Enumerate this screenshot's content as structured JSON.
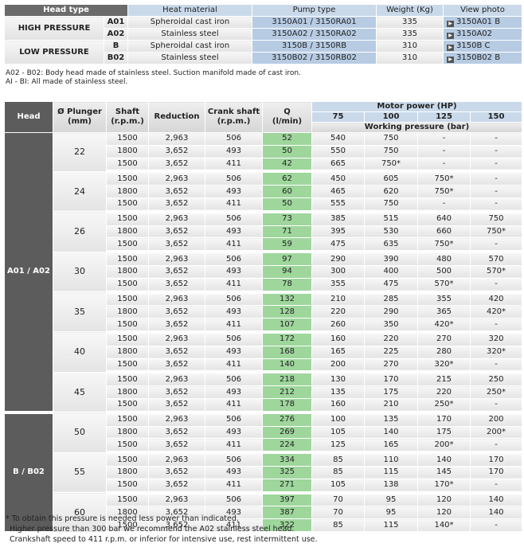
{
  "top_table": {
    "headers": [
      "Head type",
      "Heat material",
      "Pump type",
      "Weight (Kg)",
      "View photo"
    ],
    "groups": [
      {
        "label": "HIGH PRESSURE",
        "rows": [
          [
            "A01",
            "Spheroidal cast iron",
            "3150A01 / 3150RA01",
            "335",
            "3150A01 B"
          ],
          [
            "A02",
            "Stainless steel",
            "3150A02 / 3150RA02",
            "335",
            "3150A02"
          ]
        ]
      },
      {
        "label": "LOW PRESSURE",
        "rows": [
          [
            "B",
            "Spheroidal cast iron",
            "3150B / 3150RB",
            "310",
            "3150B C"
          ],
          [
            "B02",
            "Stainless steel",
            "3150B02 / 3150RB02",
            "310",
            "3150B02 B"
          ]
        ]
      }
    ]
  },
  "notes": [
    "A02 - B02: Body head made of stainless steel. Suction manifold made of cast iron.",
    "AI - BI: All made of stainless steel."
  ],
  "main_table": {
    "headers": {
      "head": "Head",
      "plunger": [
        "Ø Plunger",
        "(mm)"
      ],
      "shaft": [
        "Shaft",
        "(r.p.m.)"
      ],
      "reduction": "Reduction",
      "crank": [
        "Crank shaft",
        "(r.p.m.)"
      ],
      "q": [
        "Q",
        "(l/min)"
      ],
      "motor_power": "Motor power (HP)",
      "powers": [
        "75",
        "100",
        "125",
        "150"
      ],
      "working_pressure": "Working pressure (bar)"
    },
    "heads": [
      {
        "label": "A01 / A02",
        "plungers": [
          {
            "plunger": "22",
            "rows": [
              [
                "1500",
                "2,963",
                "506",
                "52",
                "540",
                "750",
                "-",
                "-"
              ],
              [
                "1800",
                "3,652",
                "493",
                "50",
                "550",
                "750",
                "-",
                "-"
              ],
              [
                "1500",
                "3,652",
                "411",
                "42",
                "665",
                "750*",
                "-",
                "-"
              ]
            ]
          },
          {
            "plunger": "24",
            "rows": [
              [
                "1500",
                "2,963",
                "506",
                "62",
                "450",
                "605",
                "750*",
                "-"
              ],
              [
                "1800",
                "3,652",
                "493",
                "60",
                "465",
                "620",
                "750*",
                "-"
              ],
              [
                "1500",
                "3,652",
                "411",
                "50",
                "555",
                "750",
                "-",
                "-"
              ]
            ]
          },
          {
            "plunger": "26",
            "rows": [
              [
                "1500",
                "2,963",
                "506",
                "73",
                "385",
                "515",
                "640",
                "750"
              ],
              [
                "1800",
                "3,652",
                "493",
                "71",
                "395",
                "530",
                "660",
                "750*"
              ],
              [
                "1500",
                "3,652",
                "411",
                "59",
                "475",
                "635",
                "750*",
                "-"
              ]
            ]
          },
          {
            "plunger": "30",
            "rows": [
              [
                "1500",
                "2,963",
                "506",
                "97",
                "290",
                "390",
                "480",
                "570"
              ],
              [
                "1800",
                "3,652",
                "493",
                "94",
                "300",
                "400",
                "500",
                "570*"
              ],
              [
                "1500",
                "3,652",
                "411",
                "78",
                "355",
                "475",
                "570*",
                "-"
              ]
            ]
          },
          {
            "plunger": "35",
            "rows": [
              [
                "1500",
                "2,963",
                "506",
                "132",
                "210",
                "285",
                "355",
                "420"
              ],
              [
                "1800",
                "3,652",
                "493",
                "128",
                "220",
                "290",
                "365",
                "420*"
              ],
              [
                "1500",
                "3,652",
                "411",
                "107",
                "260",
                "350",
                "420*",
                "-"
              ]
            ]
          },
          {
            "plunger": "40",
            "rows": [
              [
                "1500",
                "2,963",
                "506",
                "172",
                "160",
                "220",
                "270",
                "320"
              ],
              [
                "1800",
                "3,652",
                "493",
                "168",
                "165",
                "225",
                "280",
                "320*"
              ],
              [
                "1500",
                "3,652",
                "411",
                "140",
                "200",
                "270",
                "320*",
                "-"
              ]
            ]
          },
          {
            "plunger": "45",
            "rows": [
              [
                "1500",
                "2,963",
                "506",
                "218",
                "130",
                "170",
                "215",
                "250"
              ],
              [
                "1800",
                "3,652",
                "493",
                "212",
                "135",
                "175",
                "220",
                "250*"
              ],
              [
                "1500",
                "3,652",
                "411",
                "178",
                "160",
                "210",
                "250*",
                "-"
              ]
            ]
          }
        ]
      },
      {
        "label": "B / B02",
        "plungers": [
          {
            "plunger": "50",
            "rows": [
              [
                "1500",
                "2,963",
                "506",
                "276",
                "100",
                "135",
                "170",
                "200"
              ],
              [
                "1800",
                "3,652",
                "493",
                "269",
                "105",
                "140",
                "175",
                "200*"
              ],
              [
                "1500",
                "3,652",
                "411",
                "224",
                "125",
                "165",
                "200*",
                "-"
              ]
            ]
          },
          {
            "plunger": "55",
            "rows": [
              [
                "1500",
                "2,963",
                "506",
                "334",
                "85",
                "110",
                "140",
                "170"
              ],
              [
                "1800",
                "3,652",
                "493",
                "325",
                "85",
                "115",
                "145",
                "170"
              ],
              [
                "1500",
                "3,652",
                "411",
                "271",
                "105",
                "138",
                "170*",
                "-"
              ]
            ]
          },
          {
            "plunger": "60",
            "rows": [
              [
                "1500",
                "2,963",
                "506",
                "397",
                "70",
                "95",
                "120",
                "140"
              ],
              [
                "1800",
                "3,652",
                "493",
                "387",
                "70",
                "95",
                "120",
                "140"
              ],
              [
                "1500",
                "3,652",
                "411",
                "322",
                "85",
                "115",
                "140*",
                "-"
              ]
            ]
          }
        ]
      }
    ]
  },
  "footnotes": [
    "* To obtain this pressure is needed less power than indicated.",
    "Higher pressure than 300 bar we recommend the A02 stainless steel head.",
    "Crankshaft speed to 411 r.p.m. or inferior for intensive use, rest intermittent use."
  ]
}
